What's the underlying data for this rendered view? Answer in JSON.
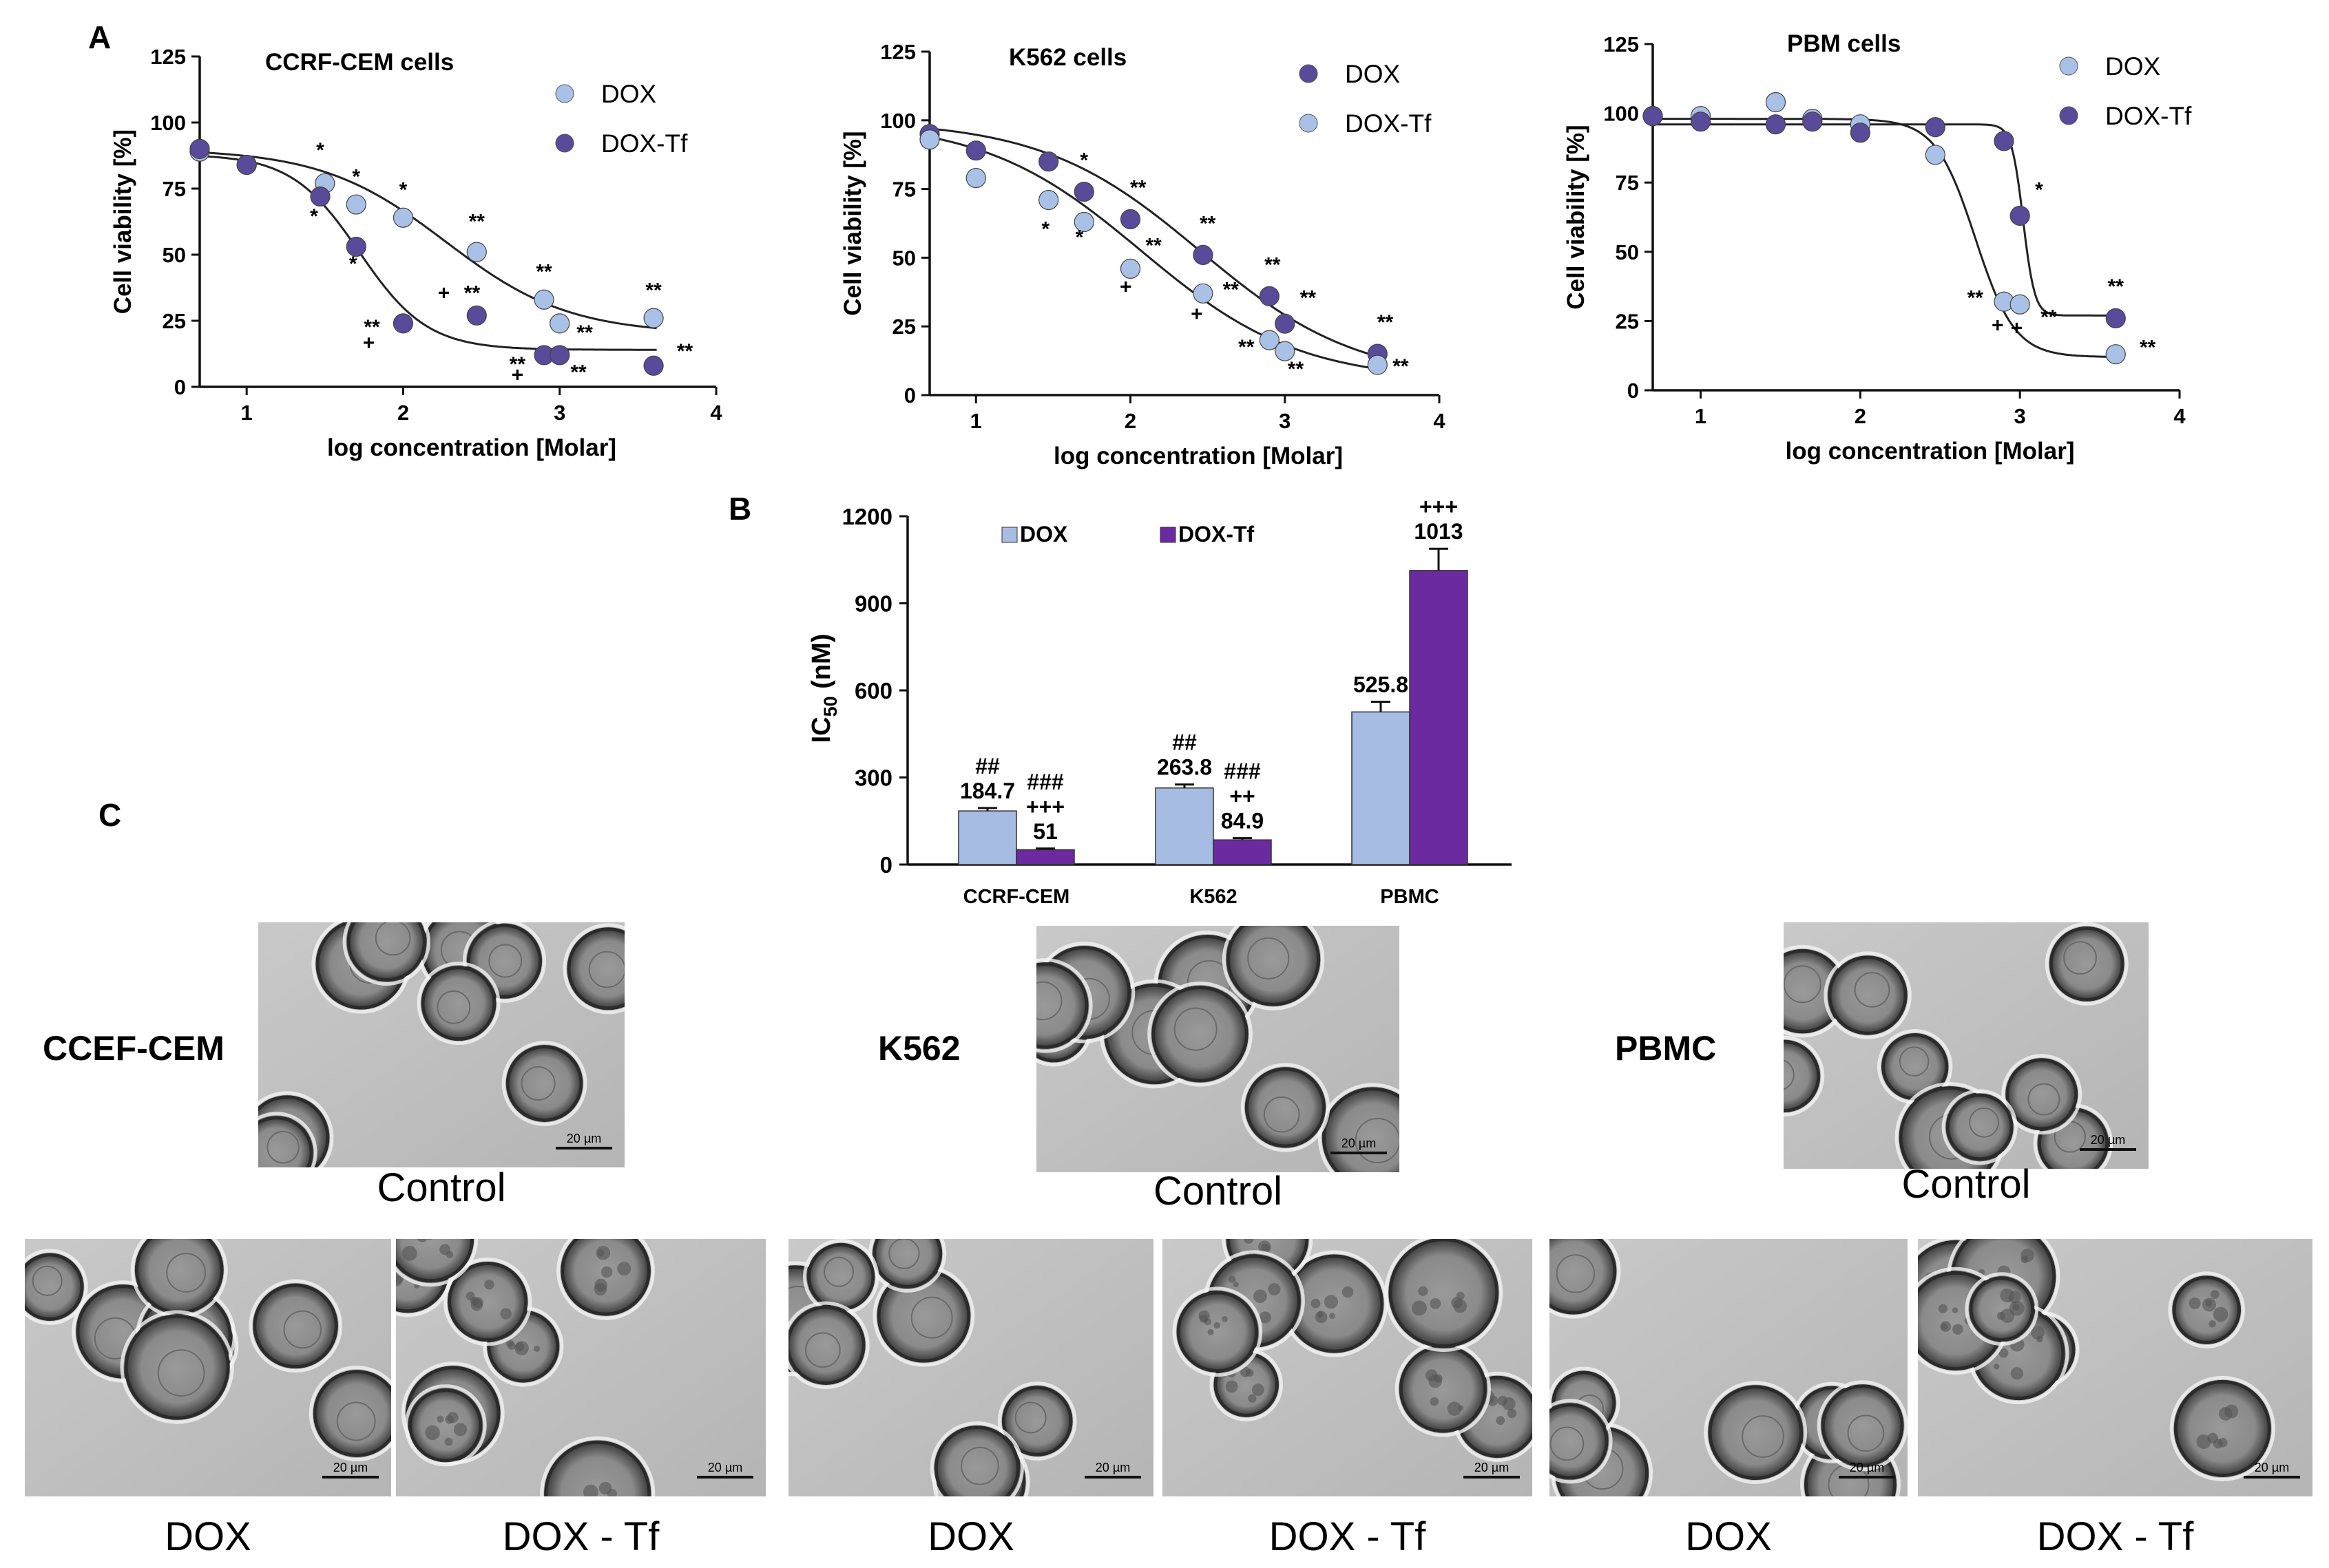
{
  "panel_labels": {
    "a": "A",
    "b": "B",
    "c": "C"
  },
  "colors": {
    "dox_light": "#a9c1e6",
    "dox_tf_dark": "#5a4a9a",
    "bar_dox": "#a7bce3",
    "bar_dox_tf": "#6b2aa0",
    "axis": "#111111"
  },
  "chart_data": [
    {
      "type": "scatter",
      "panel": "A",
      "title": "CCRF-CEM cells",
      "xlabel": "log concentration [Molar]",
      "ylabel": "Cell viability [%]",
      "xlim": [
        0.7,
        4
      ],
      "ylim": [
        0,
        125
      ],
      "xticks": [
        "1",
        "2",
        "3",
        "4"
      ],
      "yticks": [
        "0",
        "25",
        "50",
        "75",
        "100",
        "125"
      ],
      "legend": [
        {
          "name": "DOX",
          "color": "#a9c1e6"
        },
        {
          "name": "DOX-Tf",
          "color": "#5a4a9a"
        }
      ],
      "series": [
        {
          "name": "DOX",
          "color": "#a9c1e6",
          "x": [
            0.7,
            1.0,
            1.5,
            1.7,
            2.0,
            2.47,
            2.9,
            3.0,
            3.6
          ],
          "y": [
            89,
            84,
            77,
            69,
            64,
            51,
            33,
            24,
            26
          ],
          "fit": {
            "top": 90,
            "bottom": 20,
            "logec50": 2.27,
            "hill": 1.1
          }
        },
        {
          "name": "DOX-Tf",
          "color": "#5a4a9a",
          "x": [
            0.7,
            1.0,
            1.47,
            1.7,
            2.0,
            2.47,
            2.9,
            3.0,
            3.6
          ],
          "y": [
            90,
            84,
            72,
            53,
            24,
            27,
            12,
            12,
            8
          ],
          "fit": {
            "top": 88,
            "bottom": 14,
            "logec50": 1.72,
            "hill": 2.0
          }
        }
      ],
      "annotations": [
        {
          "text": "*",
          "x": 1.47,
          "y": 87
        },
        {
          "text": "*",
          "x": 1.7,
          "y": 77
        },
        {
          "text": "*",
          "x": 2.0,
          "y": 72
        },
        {
          "text": "**",
          "x": 2.47,
          "y": 60
        },
        {
          "text": "**",
          "x": 2.9,
          "y": 41
        },
        {
          "text": "**",
          "x": 3.6,
          "y": 34
        },
        {
          "text": "*",
          "x": 1.43,
          "y": 62
        },
        {
          "text": "*",
          "x": 1.68,
          "y": 44
        },
        {
          "text": "+",
          "x": 2.26,
          "y": 33
        },
        {
          "text": "**",
          "x": 2.44,
          "y": 33
        },
        {
          "text": "**",
          "x": 1.8,
          "y": 20
        },
        {
          "text": "+",
          "x": 1.78,
          "y": 14
        },
        {
          "text": "**",
          "x": 3.16,
          "y": 18
        },
        {
          "text": "**",
          "x": 3.8,
          "y": 11
        },
        {
          "text": "**",
          "x": 2.73,
          "y": 6
        },
        {
          "text": "+",
          "x": 2.73,
          "y": 2
        },
        {
          "text": "**",
          "x": 3.12,
          "y": 3
        }
      ]
    },
    {
      "type": "scatter",
      "panel": "A",
      "title": "K562 cells",
      "xlabel": "log concentration [Molar]",
      "ylabel": "Cell viability [%]",
      "xlim": [
        0.7,
        4
      ],
      "ylim": [
        0,
        125
      ],
      "xticks": [
        "1",
        "2",
        "3",
        "4"
      ],
      "yticks": [
        "0",
        "25",
        "50",
        "75",
        "100",
        "125"
      ],
      "legend": [
        {
          "name": "DOX",
          "color": "#5a4a9a"
        },
        {
          "name": "DOX-Tf",
          "color": "#a9c1e6"
        }
      ],
      "series": [
        {
          "name": "DOX",
          "color": "#5a4a9a",
          "x": [
            0.7,
            1.0,
            1.47,
            1.7,
            2.0,
            2.47,
            2.9,
            3.0,
            3.6
          ],
          "y": [
            95,
            89,
            85,
            74,
            64,
            51,
            36,
            26,
            15
          ],
          "fit": {
            "top": 100,
            "bottom": 5,
            "logec50": 2.45,
            "hill": 0.85
          }
        },
        {
          "name": "DOX-Tf",
          "color": "#a9c1e6",
          "x": [
            0.7,
            1.0,
            1.47,
            1.7,
            2.0,
            2.47,
            2.9,
            3.0,
            3.6
          ],
          "y": [
            93,
            79,
            71,
            63,
            46,
            37,
            20,
            16,
            11
          ],
          "fit": {
            "top": 100,
            "bottom": 5,
            "logec50": 2.07,
            "hill": 0.85
          }
        }
      ],
      "annotations": [
        {
          "text": "*",
          "x": 1.7,
          "y": 83
        },
        {
          "text": "**",
          "x": 2.05,
          "y": 73
        },
        {
          "text": "**",
          "x": 2.5,
          "y": 60
        },
        {
          "text": "**",
          "x": 2.92,
          "y": 45
        },
        {
          "text": "**",
          "x": 3.15,
          "y": 33
        },
        {
          "text": "**",
          "x": 3.65,
          "y": 24
        },
        {
          "text": "*",
          "x": 1.45,
          "y": 58
        },
        {
          "text": "*",
          "x": 1.67,
          "y": 55
        },
        {
          "text": "**",
          "x": 2.15,
          "y": 52
        },
        {
          "text": "+",
          "x": 1.97,
          "y": 37
        },
        {
          "text": "**",
          "x": 2.65,
          "y": 36
        },
        {
          "text": "+",
          "x": 2.43,
          "y": 27
        },
        {
          "text": "**",
          "x": 2.75,
          "y": 15
        },
        {
          "text": "**",
          "x": 3.07,
          "y": 7
        },
        {
          "text": "**",
          "x": 3.75,
          "y": 8
        }
      ]
    },
    {
      "type": "scatter",
      "panel": "A",
      "title": "PBM cells",
      "xlabel": "log concentration [Molar]",
      "ylabel": "Cell viability [%]",
      "xlim": [
        0.7,
        4
      ],
      "ylim": [
        0,
        125
      ],
      "xticks": [
        "1",
        "2",
        "3",
        "4"
      ],
      "yticks": [
        "0",
        "25",
        "50",
        "75",
        "100",
        "125"
      ],
      "legend": [
        {
          "name": "DOX",
          "color": "#a9c1e6"
        },
        {
          "name": "DOX-Tf",
          "color": "#5a4a9a"
        }
      ],
      "series": [
        {
          "name": "DOX",
          "color": "#a9c1e6",
          "x": [
            0.7,
            1.0,
            1.47,
            1.7,
            2.0,
            2.47,
            2.9,
            3.0,
            3.6
          ],
          "y": [
            99,
            99,
            104,
            98,
            96,
            85,
            32,
            31,
            13
          ],
          "fit": {
            "top": 98,
            "bottom": 12,
            "logec50": 2.72,
            "hill": 3.5
          }
        },
        {
          "name": "DOX-Tf",
          "color": "#5a4a9a",
          "x": [
            0.7,
            1.0,
            1.47,
            1.7,
            2.0,
            2.47,
            2.9,
            3.0,
            3.6
          ],
          "y": [
            99,
            97,
            96,
            97,
            93,
            95,
            90,
            63,
            26
          ],
          "fit": {
            "top": 96,
            "bottom": 27,
            "logec50": 3.02,
            "hill": 12
          }
        }
      ],
      "annotations": [
        {
          "text": "*",
          "x": 3.12,
          "y": 70
        },
        {
          "text": "**",
          "x": 3.6,
          "y": 35
        },
        {
          "text": "**",
          "x": 3.8,
          "y": 13
        },
        {
          "text": "**",
          "x": 2.72,
          "y": 31
        },
        {
          "text": "**",
          "x": 3.18,
          "y": 24
        },
        {
          "text": "+",
          "x": 2.86,
          "y": 21
        },
        {
          "text": "+",
          "x": 2.98,
          "y": 20
        }
      ]
    },
    {
      "type": "bar",
      "panel": "B",
      "title": "",
      "ylabel": "IC50 (nM)",
      "ylabel_main": "IC",
      "ylabel_sub": "50",
      "ylabel_tail": " (nM)",
      "categories": [
        "CCRF-CEM",
        "K562",
        "PBMC"
      ],
      "ylim": [
        0,
        1200
      ],
      "yticks": [
        "0",
        "300",
        "600",
        "900",
        "1200"
      ],
      "series": [
        {
          "name": "DOX",
          "color": "#a7bce3",
          "values": [
            184.7,
            263.8,
            525.8
          ],
          "errors": [
            10,
            12,
            35
          ]
        },
        {
          "name": "DOX-Tf",
          "color": "#6b2aa0",
          "values": [
            51,
            84.9,
            1013
          ],
          "errors": [
            4,
            6,
            75
          ]
        }
      ],
      "value_labels": [
        [
          "184.7",
          "263.8",
          "525.8"
        ],
        [
          "51",
          "84.9",
          "1013"
        ]
      ],
      "significance": [
        {
          "text": "##",
          "category": 0,
          "series": 0,
          "level": 2
        },
        {
          "text": "###",
          "category": 0,
          "series": 1,
          "level": 3
        },
        {
          "text": "+++",
          "category": 0,
          "series": 1,
          "level": 2
        },
        {
          "text": "##",
          "category": 1,
          "series": 0,
          "level": 2
        },
        {
          "text": "###",
          "category": 1,
          "series": 1,
          "level": 3
        },
        {
          "text": "++",
          "category": 1,
          "series": 1,
          "level": 2
        },
        {
          "text": "+++",
          "category": 2,
          "series": 1,
          "level": 2
        }
      ]
    }
  ],
  "panel_c": {
    "row_labels": [
      "CCEF-CEM",
      "K562",
      "PBMC"
    ],
    "control_label": "Control",
    "dox_label": "DOX",
    "dox_tf_label": "DOX - Tf",
    "scale_bar": "20 µm"
  }
}
